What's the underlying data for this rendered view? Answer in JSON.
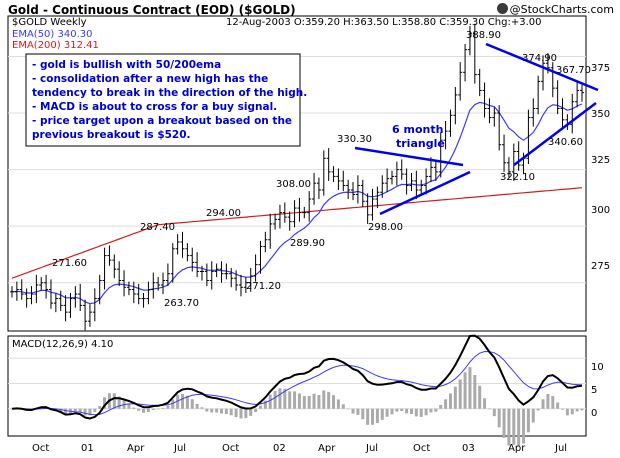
{
  "header": {
    "title": "Gold - Continuous Contract (EOD) ($GOLD)",
    "copyright": "@StockCharts.com"
  },
  "main_panel": {
    "symbol": "$GOLD Weekly",
    "date_ohlc": "12-Aug-2003 O:359.20 H:363.50 L:358.80 C:359.30 Chg:+3.00",
    "legend": [
      {
        "label": "EMA(50) 340.30",
        "color": "#3a3aff"
      },
      {
        "label": "EMA(200) 312.41",
        "color": "#cc2020"
      }
    ],
    "notes": [
      "- gold is bullish with 50/200ema",
      "- consolidation after a new high has the",
      "tendency to break in the direction of the high.",
      "- MACD is about to cross for a buy signal.",
      "- price target upon a breakout based on the",
      "previous breakout is $520."
    ],
    "triangle_label": [
      "6 month",
      "triangle"
    ],
    "price_labels": [
      "388.90",
      "374.90",
      "367.70",
      "340.60",
      "330.30",
      "322.10",
      "308.00",
      "298.00",
      "294.00",
      "289.90",
      "287.40",
      "271.60",
      "271.20",
      "263.70"
    ],
    "y_ticks": [
      "375",
      "350",
      "325",
      "300",
      "275"
    ]
  },
  "macd_panel": {
    "label": "MACD(12,26,9) 4.10",
    "y_ticks": [
      "10",
      "5",
      "0"
    ]
  },
  "x_axis": {
    "labels": [
      "Oct",
      "01",
      "Apr",
      "Jul",
      "Oct",
      "02",
      "Apr",
      "Jul",
      "Oct",
      "03",
      "Apr",
      "Jul"
    ]
  },
  "chart_data": {
    "type": "line",
    "title": "Gold - Continuous Contract (EOD) ($GOLD)",
    "price_ylim": [
      255,
      392
    ],
    "macd_ylim": [
      -5,
      14
    ],
    "x_labels": [
      "Oct",
      "01",
      "Apr",
      "Jul",
      "Oct",
      "02",
      "Apr",
      "Jul",
      "Oct",
      "03",
      "Apr",
      "Jul"
    ],
    "series": [
      {
        "name": "$GOLD Weekly",
        "kind": "ohlc",
        "values": [
          271,
          272,
          270,
          268,
          270,
          274,
          275,
          272,
          266,
          268,
          265,
          262,
          268,
          270,
          265,
          258,
          262,
          268,
          276,
          287,
          285,
          281,
          276,
          273,
          272,
          270,
          268,
          268,
          272,
          275,
          274,
          276,
          279,
          290,
          293,
          290,
          287,
          284,
          280,
          280,
          276,
          280,
          281,
          279,
          279,
          277,
          274,
          273,
          275,
          278,
          283,
          291,
          294,
          301,
          303,
          306,
          304,
          302,
          308,
          306,
          306,
          312,
          319,
          316,
          330,
          324,
          322,
          320,
          318,
          316,
          314,
          318,
          311,
          305,
          312,
          315,
          319,
          321,
          322,
          325,
          323,
          318,
          320,
          316,
          318,
          322,
          326,
          324,
          338,
          342,
          349,
          358,
          368,
          378,
          385,
          367,
          360,
          352,
          348,
          350,
          336,
          328,
          324,
          333,
          327,
          330,
          348,
          352,
          364,
          372,
          370,
          361,
          352,
          347,
          345,
          355,
          360,
          359
        ]
      },
      {
        "name": "EMA(50) 340.30",
        "color": "#3a3aff"
      },
      {
        "name": "EMA(200) 312.41",
        "color": "#cc2020"
      },
      {
        "name": "MACD(12,26,9) 4.10"
      }
    ],
    "key_prices": [
      388.9,
      374.9,
      367.7,
      340.6,
      330.3,
      322.1,
      308.0,
      298.0,
      294.0,
      289.9,
      287.4,
      271.6,
      271.2,
      263.7
    ]
  }
}
